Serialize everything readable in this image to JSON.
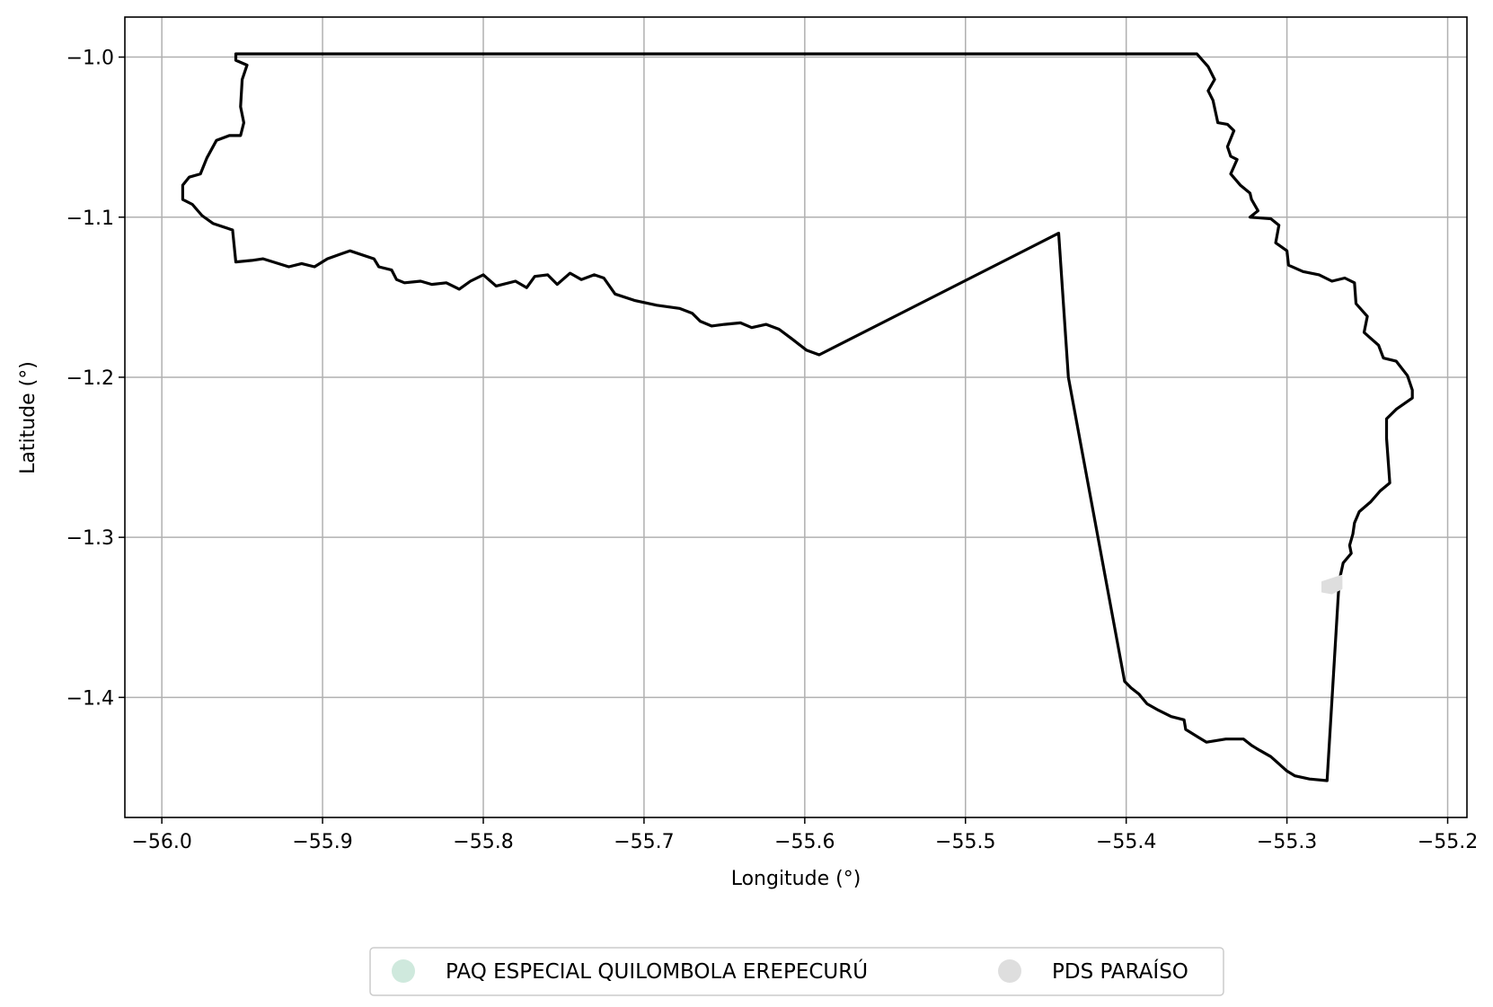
{
  "chart_data": {
    "type": "map",
    "xlabel": "Longitude (°)",
    "ylabel": "Latitude (°)",
    "xlim": [
      -56.023,
      -55.188
    ],
    "ylim": [
      -1.475,
      -0.975
    ],
    "xticks": [
      -56.0,
      -55.9,
      -55.8,
      -55.7,
      -55.6,
      -55.5,
      -55.4,
      -55.3,
      -55.2
    ],
    "xtick_labels": [
      "−56.0",
      "−55.9",
      "−55.8",
      "−55.7",
      "−55.6",
      "−55.5",
      "−55.4",
      "−55.3",
      "−55.2"
    ],
    "yticks": [
      -1.0,
      -1.1,
      -1.2,
      -1.3,
      -1.4
    ],
    "ytick_labels": [
      "−1.0",
      "−1.1",
      "−1.2",
      "−1.3",
      "−1.4"
    ],
    "grid": true,
    "legend_position": "bottom-center",
    "series": [
      {
        "name": "PAQ ESPECIAL QUILOMBOLA EREPECURÚ",
        "color": "#cfe9dd",
        "outline_color": "#000000",
        "polygon": [
          [
            -55.954,
            -0.998
          ],
          [
            -55.356,
            -0.998
          ],
          [
            -55.349,
            -1.006
          ],
          [
            -55.345,
            -1.014
          ],
          [
            -55.349,
            -1.021
          ],
          [
            -55.346,
            -1.027
          ],
          [
            -55.343,
            -1.041
          ],
          [
            -55.337,
            -1.042
          ],
          [
            -55.333,
            -1.046
          ],
          [
            -55.337,
            -1.056
          ],
          [
            -55.335,
            -1.062
          ],
          [
            -55.331,
            -1.064
          ],
          [
            -55.335,
            -1.073
          ],
          [
            -55.329,
            -1.08
          ],
          [
            -55.323,
            -1.085
          ],
          [
            -55.322,
            -1.089
          ],
          [
            -55.318,
            -1.096
          ],
          [
            -55.323,
            -1.1
          ],
          [
            -55.31,
            -1.101
          ],
          [
            -55.305,
            -1.105
          ],
          [
            -55.307,
            -1.116
          ],
          [
            -55.3,
            -1.121
          ],
          [
            -55.299,
            -1.13
          ],
          [
            -55.29,
            -1.134
          ],
          [
            -55.28,
            -1.136
          ],
          [
            -55.272,
            -1.14
          ],
          [
            -55.264,
            -1.138
          ],
          [
            -55.258,
            -1.141
          ],
          [
            -55.257,
            -1.154
          ],
          [
            -55.25,
            -1.162
          ],
          [
            -55.252,
            -1.172
          ],
          [
            -55.243,
            -1.18
          ],
          [
            -55.24,
            -1.188
          ],
          [
            -55.232,
            -1.19
          ],
          [
            -55.225,
            -1.199
          ],
          [
            -55.222,
            -1.208
          ],
          [
            -55.222,
            -1.213
          ],
          [
            -55.232,
            -1.22
          ],
          [
            -55.238,
            -1.226
          ],
          [
            -55.238,
            -1.238
          ],
          [
            -55.237,
            -1.252
          ],
          [
            -55.236,
            -1.266
          ],
          [
            -55.242,
            -1.271
          ],
          [
            -55.248,
            -1.278
          ],
          [
            -55.255,
            -1.284
          ],
          [
            -55.258,
            -1.291
          ],
          [
            -55.259,
            -1.298
          ],
          [
            -55.261,
            -1.305
          ],
          [
            -55.26,
            -1.31
          ],
          [
            -55.265,
            -1.316
          ],
          [
            -55.267,
            -1.325
          ],
          [
            -55.268,
            -1.335
          ],
          [
            -55.275,
            -1.452
          ],
          [
            -55.286,
            -1.451
          ],
          [
            -55.295,
            -1.449
          ],
          [
            -55.3,
            -1.446
          ],
          [
            -55.31,
            -1.437
          ],
          [
            -55.317,
            -1.433
          ],
          [
            -55.322,
            -1.43
          ],
          [
            -55.327,
            -1.426
          ],
          [
            -55.338,
            -1.426
          ],
          [
            -55.35,
            -1.428
          ],
          [
            -55.355,
            -1.425
          ],
          [
            -55.363,
            -1.42
          ],
          [
            -55.364,
            -1.414
          ],
          [
            -55.372,
            -1.412
          ],
          [
            -55.38,
            -1.408
          ],
          [
            -55.387,
            -1.404
          ],
          [
            -55.392,
            -1.398
          ],
          [
            -55.397,
            -1.394
          ],
          [
            -55.401,
            -1.39
          ],
          [
            -55.436,
            -1.2
          ],
          [
            -55.442,
            -1.11
          ],
          [
            -55.591,
            -1.186
          ],
          [
            -55.599,
            -1.183
          ],
          [
            -55.608,
            -1.176
          ],
          [
            -55.616,
            -1.17
          ],
          [
            -55.624,
            -1.167
          ],
          [
            -55.633,
            -1.169
          ],
          [
            -55.64,
            -1.166
          ],
          [
            -55.65,
            -1.167
          ],
          [
            -55.658,
            -1.168
          ],
          [
            -55.665,
            -1.165
          ],
          [
            -55.67,
            -1.16
          ],
          [
            -55.678,
            -1.157
          ],
          [
            -55.692,
            -1.155
          ],
          [
            -55.706,
            -1.152
          ],
          [
            -55.718,
            -1.148
          ],
          [
            -55.725,
            -1.138
          ],
          [
            -55.731,
            -1.136
          ],
          [
            -55.739,
            -1.139
          ],
          [
            -55.746,
            -1.135
          ],
          [
            -55.754,
            -1.142
          ],
          [
            -55.76,
            -1.136
          ],
          [
            -55.768,
            -1.137
          ],
          [
            -55.773,
            -1.144
          ],
          [
            -55.78,
            -1.14
          ],
          [
            -55.792,
            -1.143
          ],
          [
            -55.8,
            -1.136
          ],
          [
            -55.808,
            -1.14
          ],
          [
            -55.815,
            -1.145
          ],
          [
            -55.823,
            -1.141
          ],
          [
            -55.832,
            -1.142
          ],
          [
            -55.839,
            -1.14
          ],
          [
            -55.849,
            -1.141
          ],
          [
            -55.854,
            -1.139
          ],
          [
            -55.857,
            -1.133
          ],
          [
            -55.865,
            -1.131
          ],
          [
            -55.868,
            -1.126
          ],
          [
            -55.883,
            -1.121
          ],
          [
            -55.897,
            -1.126
          ],
          [
            -55.905,
            -1.131
          ],
          [
            -55.913,
            -1.129
          ],
          [
            -55.921,
            -1.131
          ],
          [
            -55.937,
            -1.126
          ],
          [
            -55.944,
            -1.127
          ],
          [
            -55.954,
            -1.128
          ],
          [
            -55.956,
            -1.108
          ],
          [
            -55.968,
            -1.104
          ],
          [
            -55.975,
            -1.099
          ],
          [
            -55.981,
            -1.092
          ],
          [
            -55.987,
            -1.089
          ],
          [
            -55.987,
            -1.08
          ],
          [
            -55.983,
            -1.075
          ],
          [
            -55.976,
            -1.073
          ],
          [
            -55.972,
            -1.063
          ],
          [
            -55.966,
            -1.052
          ],
          [
            -55.958,
            -1.049
          ],
          [
            -55.951,
            -1.049
          ],
          [
            -55.949,
            -1.041
          ],
          [
            -55.951,
            -1.031
          ],
          [
            -55.95,
            -1.014
          ],
          [
            -55.947,
            -1.005
          ],
          [
            -55.954,
            -1.002
          ],
          [
            -55.954,
            -0.998
          ]
        ]
      },
      {
        "name": "PDS PARAÍSO",
        "color": "#dedede",
        "polygon": [
          [
            -55.278,
            -1.328
          ],
          [
            -55.272,
            -1.326
          ],
          [
            -55.266,
            -1.324
          ],
          [
            -55.266,
            -1.332
          ],
          [
            -55.272,
            -1.335
          ],
          [
            -55.278,
            -1.334
          ]
        ]
      }
    ]
  }
}
